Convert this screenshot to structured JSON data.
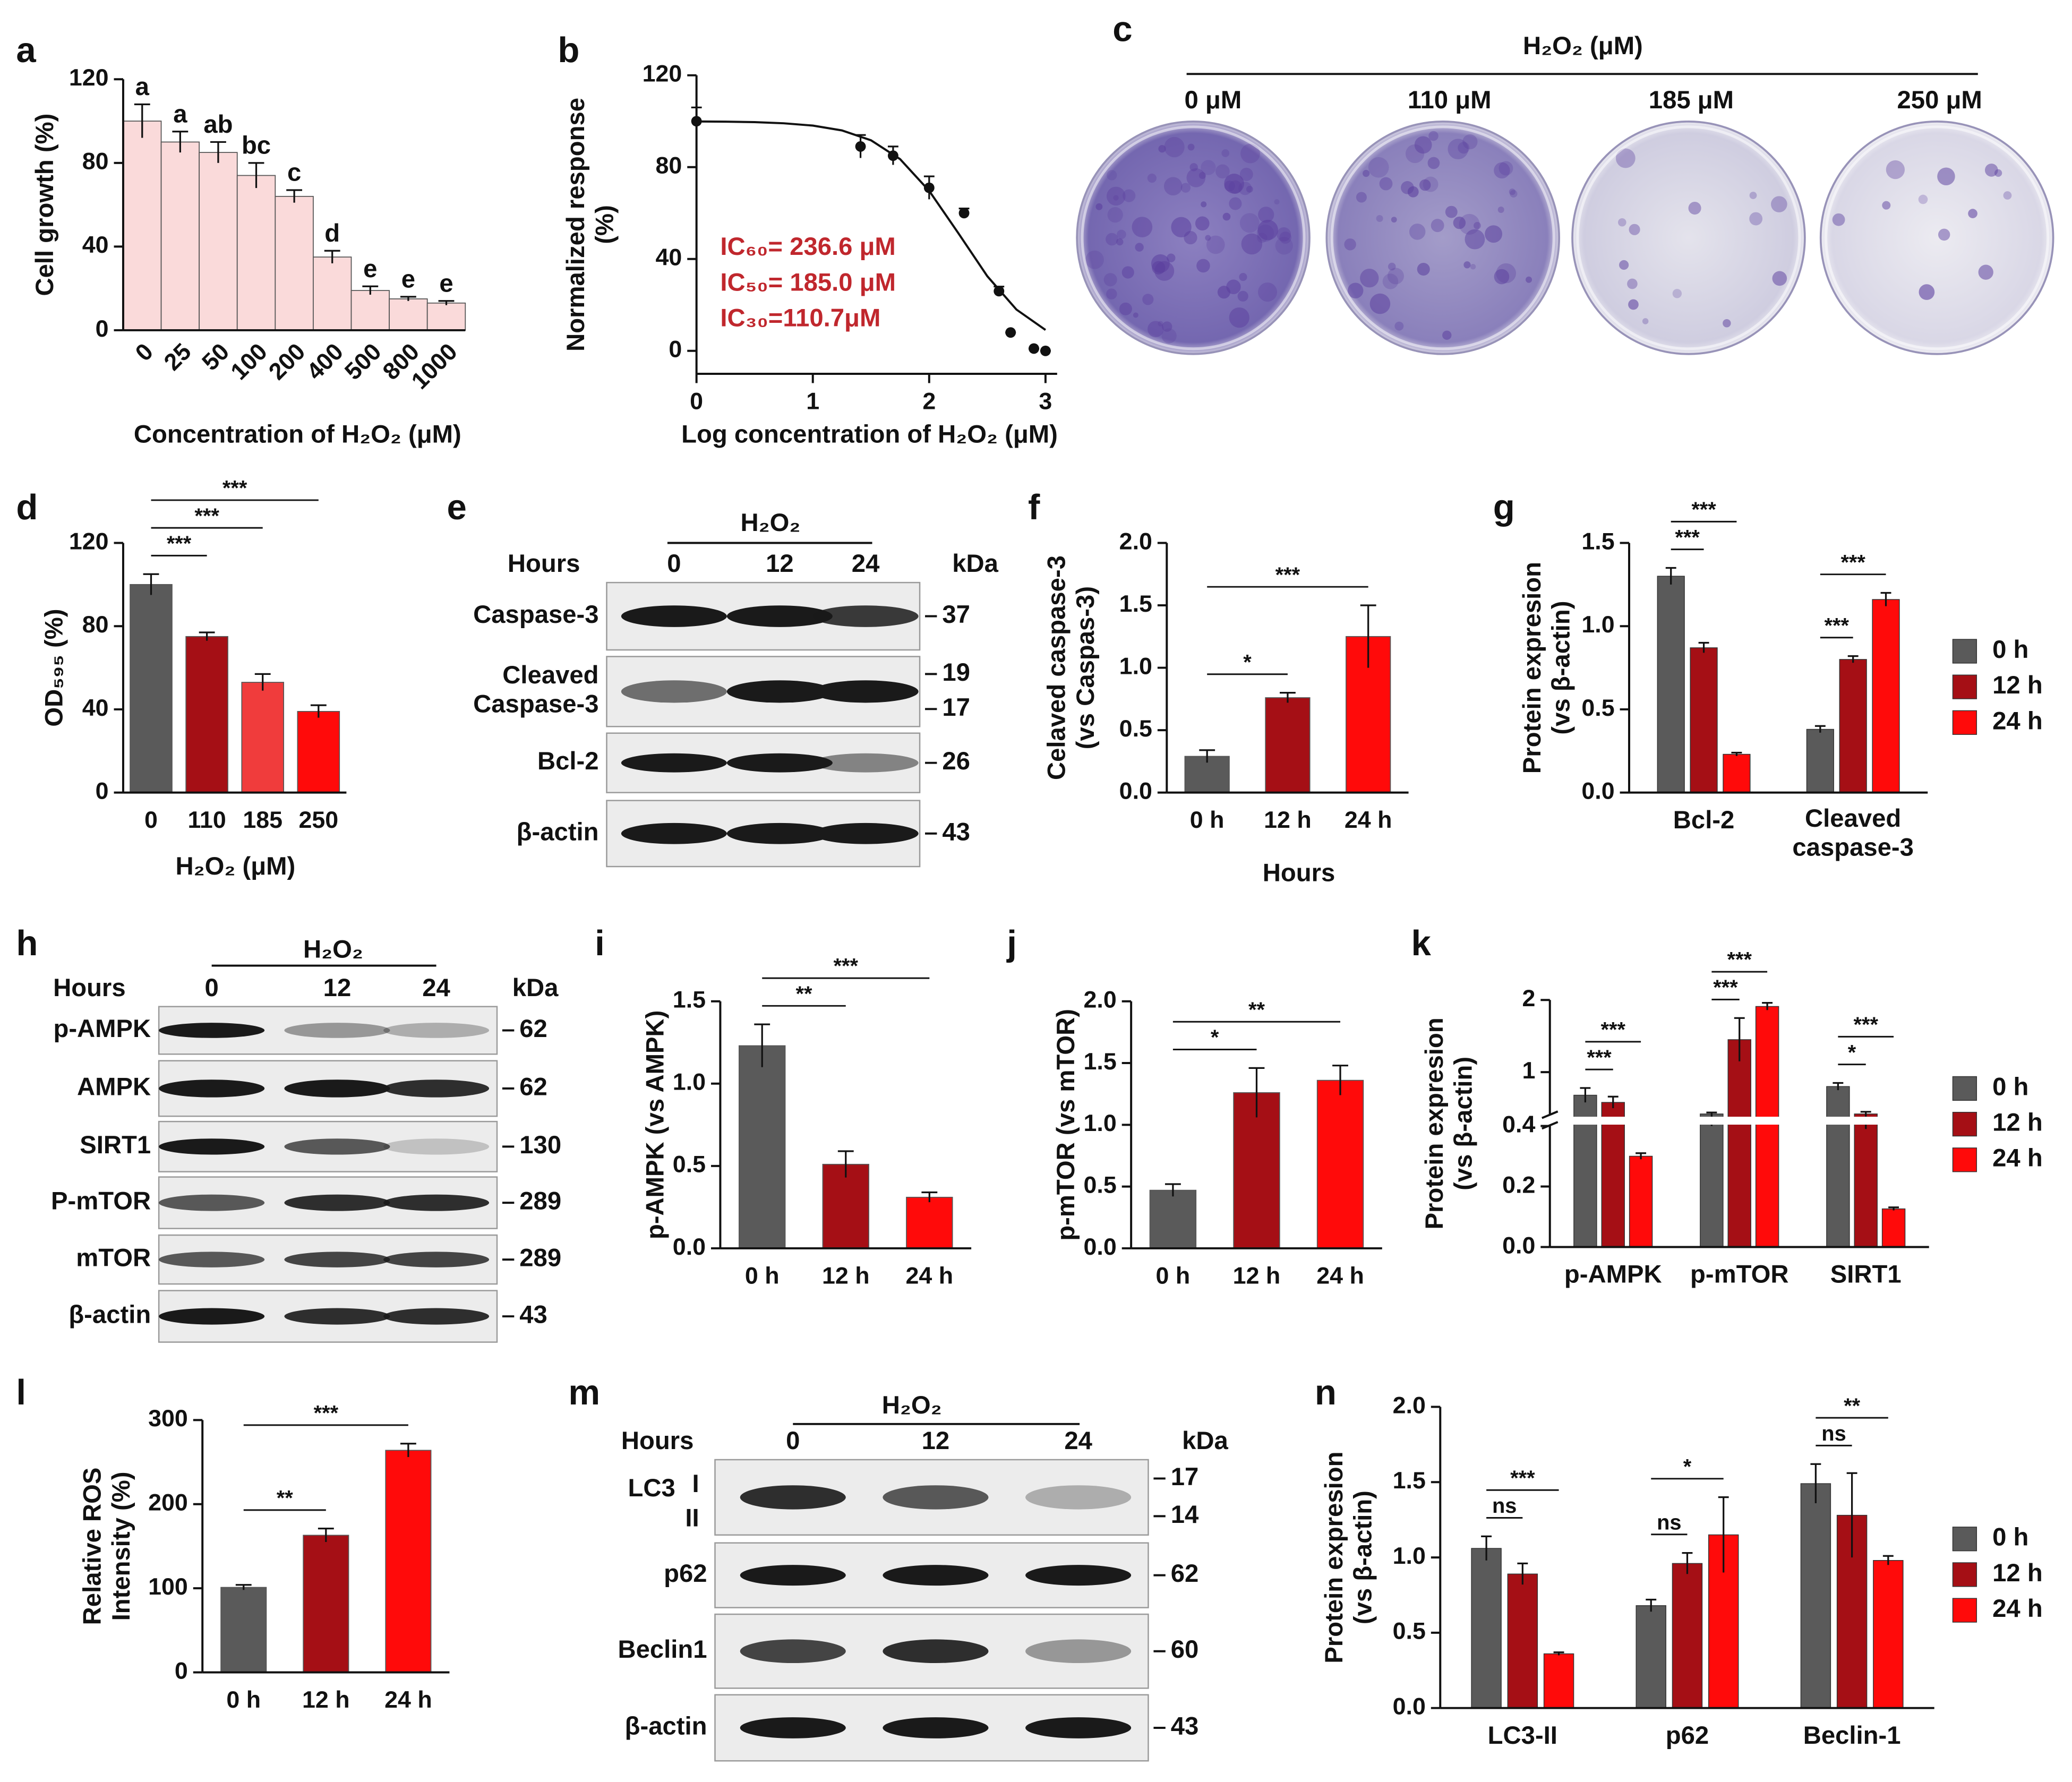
{
  "chart_data": [
    {
      "panel": "a",
      "type": "bar",
      "ylabel": "Cell growth (%)",
      "xlabel": "Concentration of H₂O₂ (μM)",
      "categories": [
        "0",
        "25",
        "50",
        "100",
        "200",
        "400",
        "500",
        "800",
        "1000"
      ],
      "values": [
        100,
        90,
        85,
        74,
        64,
        35,
        19,
        15,
        13
      ],
      "errors": [
        8,
        5,
        5,
        6,
        3,
        3,
        2,
        1,
        1
      ],
      "letters": [
        "a",
        "a",
        "ab",
        "bc",
        "c",
        "d",
        "e",
        "e",
        "e"
      ],
      "color": "#fadada",
      "xtick_rotation": -45,
      "ylim": [
        0,
        120
      ],
      "yticks": [
        0,
        40,
        80,
        120
      ]
    },
    {
      "panel": "b",
      "type": "scatter",
      "ylabel": "Normalized response\n(%)",
      "xlabel": "Log concentration of H₂O₂ (μM)",
      "x": [
        0,
        1.41,
        1.69,
        2.0,
        2.3,
        2.6,
        2.7,
        2.9,
        3.0
      ],
      "values": [
        100,
        89,
        85,
        71,
        60,
        26,
        8,
        1,
        0
      ],
      "errors": [
        6,
        5,
        4,
        5,
        2,
        2,
        0,
        0,
        0
      ],
      "fit": {
        "x": [
          0,
          0.25,
          0.5,
          0.75,
          1,
          1.25,
          1.5,
          1.75,
          2,
          2.25,
          2.5,
          2.75,
          3
        ],
        "y": [
          99.9,
          99.8,
          99.6,
          99.1,
          98.1,
          96.0,
          91.7,
          83.5,
          69.7,
          51.3,
          32.5,
          18.0,
          9.1
        ]
      },
      "color": "#111111",
      "xlim": [
        0,
        3.1
      ],
      "xticks": [
        0,
        1,
        2,
        3
      ],
      "ylim": [
        -10,
        120
      ],
      "yticks": [
        0,
        40,
        80,
        120
      ],
      "annotations": [
        "IC₆₀= 236.6 μM",
        "IC₅₀= 185.0 μM",
        "IC₃₀=110.7μM"
      ],
      "annotation_color": "#c0272d"
    },
    {
      "panel": "d",
      "type": "bar",
      "ylabel": "OD₅₉₅ (%)",
      "xlabel": "H₂O₂ (μM)",
      "categories": [
        "0",
        "110",
        "185",
        "250"
      ],
      "values": [
        100,
        75,
        53,
        39
      ],
      "errors": [
        5,
        2,
        4,
        3
      ],
      "colors": [
        "#5a5a5a",
        "#a50f15",
        "#f03c3c",
        "#ff0a0a"
      ],
      "ylim": [
        0,
        120
      ],
      "yticks": [
        0,
        40,
        80,
        120
      ],
      "significance": [
        {
          "from": "0",
          "to": "110",
          "label": "***"
        },
        {
          "from": "0",
          "to": "185",
          "label": "***"
        },
        {
          "from": "0",
          "to": "250",
          "label": "***"
        }
      ]
    },
    {
      "panel": "f",
      "type": "bar",
      "ylabel": "Celaved caspase-3\n(vs Caspas-3)",
      "xlabel": "Hours",
      "categories": [
        "0 h",
        "12 h",
        "24 h"
      ],
      "values": [
        0.29,
        0.76,
        1.25
      ],
      "errors": [
        0.05,
        0.04,
        0.25
      ],
      "colors": [
        "#5a5a5a",
        "#a50f15",
        "#ff0a0a"
      ],
      "ylim": [
        0,
        2
      ],
      "yticks": [
        {
          "value": 0,
          "label": "0.0"
        },
        0.5,
        {
          "value": 1,
          "label": "1.0"
        },
        1.5,
        {
          "value": 2,
          "label": "2.0"
        }
      ],
      "significance": [
        {
          "from": "0 h",
          "to": "12 h",
          "label": "*"
        },
        {
          "from": "0 h",
          "to": "24 h",
          "label": "***"
        }
      ]
    },
    {
      "panel": "g",
      "type": "bar",
      "ylabel": "Protein expresion\n(vs β-actin)",
      "categories": [
        "Bcl-2",
        "Cleaved\ncaspase-3"
      ],
      "series": [
        {
          "name": "0 h",
          "color": "#5a5a5a",
          "values": [
            1.3,
            0.38
          ],
          "errors": [
            0.05,
            0.02
          ]
        },
        {
          "name": "12 h",
          "color": "#a50f15",
          "values": [
            0.87,
            0.8
          ],
          "errors": [
            0.03,
            0.02
          ]
        },
        {
          "name": "24 h",
          "color": "#ff0a0a",
          "values": [
            0.23,
            1.16
          ],
          "errors": [
            0.01,
            0.04
          ]
        }
      ],
      "ylim": [
        0,
        1.5
      ],
      "yticks": [
        {
          "value": 0,
          "label": "0.0"
        },
        0.5,
        {
          "value": 1,
          "label": "1.0"
        },
        1.5
      ],
      "legend": "right",
      "significance": [
        {
          "category": "Bcl-2",
          "from": "0 h",
          "to": "12 h",
          "label": "***"
        },
        {
          "category": "Bcl-2",
          "from": "0 h",
          "to": "24 h",
          "label": "***"
        },
        {
          "category": "Cleaved\ncaspase-3",
          "from": "0 h",
          "to": "12 h",
          "label": "***"
        },
        {
          "category": "Cleaved\ncaspase-3",
          "from": "0 h",
          "to": "24 h",
          "label": "***"
        }
      ]
    },
    {
      "panel": "i",
      "type": "bar",
      "ylabel": "p-AMPK (vs AMPK)",
      "categories": [
        "0 h",
        "12 h",
        "24 h"
      ],
      "values": [
        1.23,
        0.51,
        0.31
      ],
      "errors": [
        0.13,
        0.08,
        0.03
      ],
      "colors": [
        "#5a5a5a",
        "#a50f15",
        "#ff0a0a"
      ],
      "ylim": [
        0,
        1.5
      ],
      "yticks": [
        {
          "value": 0,
          "label": "0.0"
        },
        0.5,
        {
          "value": 1,
          "label": "1.0"
        },
        1.5
      ],
      "significance": [
        {
          "from": "0 h",
          "to": "12 h",
          "label": "**"
        },
        {
          "from": "0 h",
          "to": "24 h",
          "label": "***"
        }
      ]
    },
    {
      "panel": "j",
      "type": "bar",
      "ylabel": "p-mTOR (vs mTOR)",
      "categories": [
        "0 h",
        "12 h",
        "24 h"
      ],
      "values": [
        0.47,
        1.26,
        1.36
      ],
      "errors": [
        0.05,
        0.2,
        0.12
      ],
      "colors": [
        "#5a5a5a",
        "#a50f15",
        "#ff0a0a"
      ],
      "ylim": [
        0,
        2
      ],
      "yticks": [
        {
          "value": 0,
          "label": "0.0"
        },
        0.5,
        {
          "value": 1,
          "label": "1.0"
        },
        1.5,
        {
          "value": 2,
          "label": "2.0"
        }
      ],
      "significance": [
        {
          "from": "0 h",
          "to": "12 h",
          "label": "*"
        },
        {
          "from": "0 h",
          "to": "24 h",
          "label": "**"
        }
      ]
    },
    {
      "panel": "k",
      "type": "bar",
      "ylabel": "Protein expresion\n(vs β-actin)",
      "categories": [
        "p-AMPK",
        "p-mTOR",
        "SIRT1"
      ],
      "series": [
        {
          "name": "0 h",
          "color": "#5a5a5a",
          "values": [
            0.68,
            0.42,
            0.8
          ],
          "errors": [
            0.1,
            0.02,
            0.05
          ]
        },
        {
          "name": "12 h",
          "color": "#a50f15",
          "values": [
            0.58,
            1.45,
            0.42
          ],
          "errors": [
            0.08,
            0.3,
            0.03
          ]
        },
        {
          "name": "24 h",
          "color": "#ff0a0a",
          "values": [
            0.3,
            1.91,
            0.126
          ],
          "errors": [
            0.01,
            0.05,
            0.005
          ]
        }
      ],
      "ylim": [
        0,
        2
      ],
      "y_break_at": 0.4,
      "yticks": [
        {
          "value": 0,
          "label": "0.0"
        },
        0.2,
        0.4,
        1,
        2
      ],
      "legend": "right",
      "significance": [
        {
          "category": "p-AMPK",
          "from": "0 h",
          "to": "12 h",
          "label": "***"
        },
        {
          "category": "p-AMPK",
          "from": "0 h",
          "to": "24 h",
          "label": "***"
        },
        {
          "category": "p-mTOR",
          "from": "0 h",
          "to": "12 h",
          "label": "***"
        },
        {
          "category": "p-mTOR",
          "from": "0 h",
          "to": "24 h",
          "label": "***"
        },
        {
          "category": "SIRT1",
          "from": "0 h",
          "to": "12 h",
          "label": "*"
        },
        {
          "category": "SIRT1",
          "from": "0 h",
          "to": "24 h",
          "label": "***"
        }
      ]
    },
    {
      "panel": "l",
      "type": "bar",
      "ylabel": "Relative ROS\nIntensity (%)",
      "categories": [
        "0 h",
        "12 h",
        "24 h"
      ],
      "values": [
        101,
        163,
        264
      ],
      "errors": [
        3,
        8,
        8
      ],
      "colors": [
        "#5a5a5a",
        "#a50f15",
        "#ff0a0a"
      ],
      "ylim": [
        0,
        300
      ],
      "yticks": [
        0,
        100,
        200,
        300
      ],
      "significance": [
        {
          "from": "0 h",
          "to": "12 h",
          "label": "**"
        },
        {
          "from": "0 h",
          "to": "24 h",
          "label": "***"
        }
      ]
    },
    {
      "panel": "n",
      "type": "bar",
      "ylabel": "Protein expresion\n(vs β-actin)",
      "categories": [
        "LC3-II",
        "p62",
        "Beclin-1"
      ],
      "series": [
        {
          "name": "0 h",
          "color": "#5a5a5a",
          "values": [
            1.06,
            0.68,
            1.49
          ],
          "errors": [
            0.08,
            0.04,
            0.13
          ]
        },
        {
          "name": "12 h",
          "color": "#a50f15",
          "values": [
            0.89,
            0.96,
            1.28
          ],
          "errors": [
            0.07,
            0.07,
            0.28
          ]
        },
        {
          "name": "24 h",
          "color": "#ff0a0a",
          "values": [
            0.36,
            1.15,
            0.98
          ],
          "errors": [
            0.01,
            0.25,
            0.03
          ]
        }
      ],
      "ylim": [
        0,
        2
      ],
      "yticks": [
        {
          "value": 0,
          "label": "0.0"
        },
        0.5,
        {
          "value": 1,
          "label": "1.0"
        },
        1.5,
        {
          "value": 2,
          "label": "2.0"
        }
      ],
      "legend": "right",
      "significance": [
        {
          "category": "LC3-II",
          "from": "0 h",
          "to": "12 h",
          "label": "ns"
        },
        {
          "category": "LC3-II",
          "from": "0 h",
          "to": "24 h",
          "label": "***"
        },
        {
          "category": "p62",
          "from": "0 h",
          "to": "12 h",
          "label": "ns"
        },
        {
          "category": "p62",
          "from": "0 h",
          "to": "24 h",
          "label": "*"
        },
        {
          "category": "Beclin-1",
          "from": "0 h",
          "to": "12 h",
          "label": "ns"
        },
        {
          "category": "Beclin-1",
          "from": "0 h",
          "to": "24 h",
          "label": "**"
        }
      ]
    }
  ],
  "plates": {
    "panel": "c",
    "title": "H₂O₂ (μM)",
    "labels": [
      "0 μM",
      "110 μM",
      "185 μM",
      "250 μM"
    ]
  },
  "blots": [
    {
      "panel": "e",
      "treatment": "H₂O₂",
      "hours_label": "Hours",
      "hours": [
        0,
        12,
        24
      ],
      "unit": "kDa",
      "rows": [
        {
          "name": "Caspase-3",
          "kda": [
            37
          ]
        },
        {
          "name": "Cleaved\nCaspase-3",
          "kda": [
            19,
            17
          ]
        },
        {
          "name": "Bcl-2",
          "kda": [
            26
          ]
        },
        {
          "name": "β-actin",
          "kda": [
            43
          ]
        }
      ]
    },
    {
      "panel": "h",
      "treatment": "H₂O₂",
      "hours_label": "Hours",
      "hours": [
        0,
        12,
        24
      ],
      "unit": "kDa",
      "rows": [
        {
          "name": "p-AMPK",
          "kda": [
            62
          ]
        },
        {
          "name": "AMPK",
          "kda": [
            62
          ]
        },
        {
          "name": "SIRT1",
          "kda": [
            130
          ]
        },
        {
          "name": "P-mTOR",
          "kda": [
            289
          ]
        },
        {
          "name": "mTOR",
          "kda": [
            289
          ]
        },
        {
          "name": "β-actin",
          "kda": [
            43
          ]
        }
      ]
    },
    {
      "panel": "m",
      "treatment": "H₂O₂",
      "hours_label": "Hours",
      "hours": [
        0,
        12,
        24
      ],
      "unit": "kDa",
      "rows": [
        {
          "name": "LC3",
          "sublabels": [
            "I",
            "II"
          ],
          "kda": [
            17,
            14
          ]
        },
        {
          "name": "p62",
          "kda": [
            62
          ]
        },
        {
          "name": "Beclin1",
          "kda": [
            60
          ]
        },
        {
          "name": "β-actin",
          "kda": [
            43
          ]
        }
      ]
    }
  ]
}
